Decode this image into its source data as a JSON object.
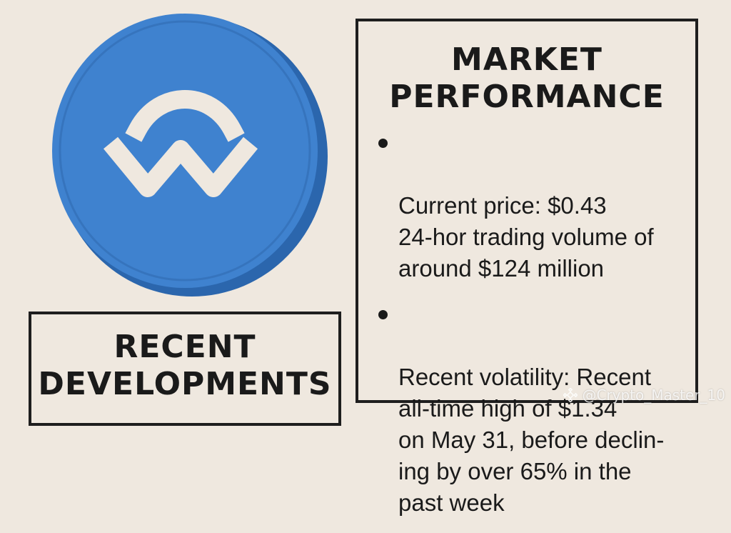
{
  "colors": {
    "background": "#efe8df",
    "coin_face": "#3f82cf",
    "coin_edge": "#2b66ad",
    "coin_logo": "#efe8df",
    "text": "#1a1a1a"
  },
  "coin": {
    "icon": "walletconnect-logo-icon"
  },
  "market": {
    "title": "MARKET\nPERFORMANCE",
    "bullets": [
      {
        "text": "Current price: $0.43\n24-hor trading volume of\naround $124 million"
      },
      {
        "text": "Recent volatility: Recent\nall-time high of $1.34\non May 31, before declin-\ning by over 65% in the\npast week"
      }
    ]
  },
  "recent": {
    "title": "RECENT\nDEVELOPMENTS"
  },
  "watermark": {
    "icon": "binance-logo-icon",
    "text": "@Crypto_Master_10"
  }
}
